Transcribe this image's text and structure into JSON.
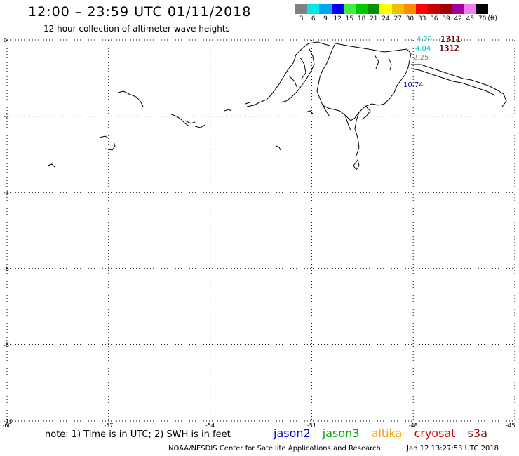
{
  "title": "12:00 – 23:59 UTC 01/11/2018",
  "subtitle": "12 hour collection of altimeter wave heights",
  "colorbar": {
    "unit": "(ft)",
    "labels": [
      "3",
      "6",
      "9",
      "12",
      "15",
      "18",
      "21",
      "24",
      "27",
      "30",
      "33",
      "36",
      "39",
      "42",
      "45",
      "70"
    ],
    "colors": [
      "#808080",
      "#00e8e8",
      "#00a8f0",
      "#0000f0",
      "#40ee40",
      "#00c800",
      "#009000",
      "#ffff00",
      "#f0c000",
      "#ff8c00",
      "#ff0000",
      "#c80000",
      "#a00000",
      "#a000a0",
      "#f080f0",
      "#000000"
    ]
  },
  "axes": {
    "x_ticks": [
      "-60",
      "-57",
      "-54",
      "-51",
      "-48",
      "-45"
    ],
    "y_ticks": [
      "0",
      "-2",
      "-4",
      "-6",
      "-8",
      "-10"
    ],
    "lon_range": [
      -60,
      -45
    ],
    "lat_range": [
      -10,
      0
    ]
  },
  "observations": [
    {
      "label": "4.29",
      "color": "#00c8c8"
    },
    {
      "label": "4.04",
      "color": "#00c8c8"
    },
    {
      "label": "2.25",
      "color": "#808080"
    },
    {
      "label": "10.74",
      "color": "#0000c8"
    }
  ],
  "pass_ids": [
    "1311",
    "1312"
  ],
  "note": "note: 1) Time is in UTC; 2) SWH is in feet",
  "satellites": [
    {
      "name": "jason2",
      "color": "#0000e0"
    },
    {
      "name": "jason3",
      "color": "#00a000"
    },
    {
      "name": "altika",
      "color": "#ff9900"
    },
    {
      "name": "cryosat",
      "color": "#e00000"
    },
    {
      "name": "s3a",
      "color": "#900000"
    }
  ],
  "credit": "NOAA/NESDIS Center for Satellite Applications and Research",
  "timestamp": "Jan 12 13:27:53 UTC 2018"
}
